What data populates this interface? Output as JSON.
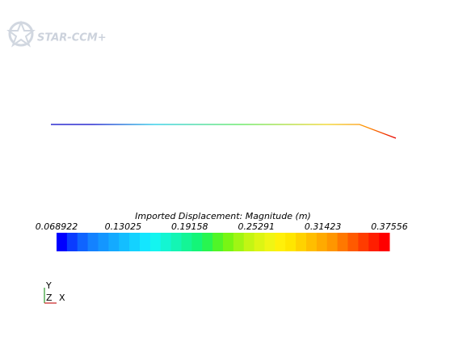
{
  "logo": {
    "text": "STAR-CCM+"
  },
  "colorbar": {
    "title": "Imported Displacement: Magnitude (m)",
    "ticks": [
      0.068922,
      0.13025,
      0.19158,
      0.25291,
      0.31423,
      0.37556
    ],
    "colors": [
      "#0000ff",
      "#0a3cff",
      "#0f64ff",
      "#1482ff",
      "#1496ff",
      "#14aaff",
      "#14beff",
      "#14d2ff",
      "#14e6ff",
      "#14f5f0",
      "#14f5d2",
      "#14f5b4",
      "#14f596",
      "#14f578",
      "#28f550",
      "#50f528",
      "#78f514",
      "#a0f514",
      "#c3f514",
      "#dcf514",
      "#f0f514",
      "#fff00a",
      "#ffe600",
      "#ffd200",
      "#ffbe00",
      "#ffaa00",
      "#ff9600",
      "#ff7800",
      "#ff5a00",
      "#ff3c00",
      "#ff1e00",
      "#ff0000"
    ]
  },
  "triad": {
    "y": "Y",
    "z": "Z",
    "x": "X"
  }
}
